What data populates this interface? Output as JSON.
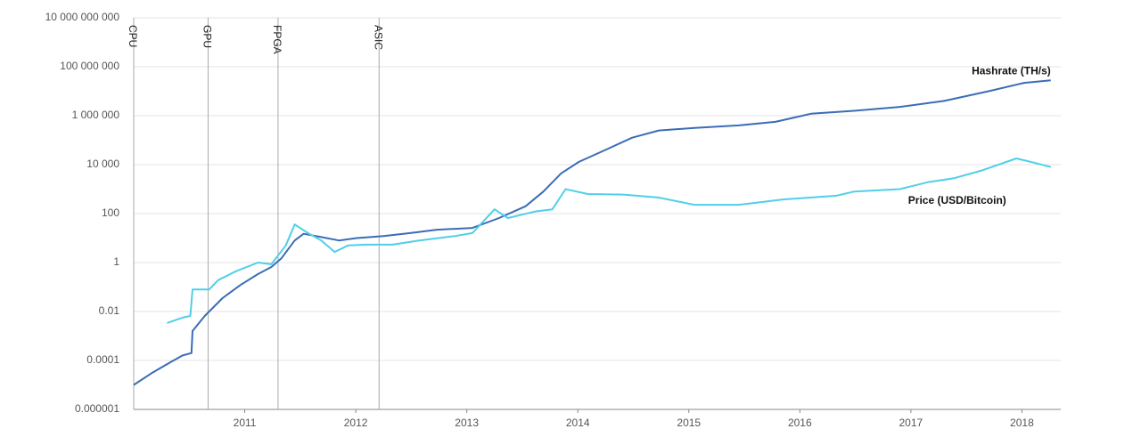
{
  "chart_data": {
    "type": "line",
    "log_scale": true,
    "grid": true,
    "xlim": [
      2010.0,
      2018.35
    ],
    "xticks": [
      2011,
      2012,
      2013,
      2014,
      2015,
      2016,
      2017,
      2018
    ],
    "ylim": [
      1e-06,
      10000000000
    ],
    "yticks": [
      {
        "value": 1e-06,
        "label": "0.000001"
      },
      {
        "value": 0.0001,
        "label": "0.0001"
      },
      {
        "value": 0.01,
        "label": "0.01"
      },
      1,
      100,
      {
        "value": 10000,
        "label": "10 000"
      },
      {
        "value": 1000000,
        "label": "1 000 000"
      },
      {
        "value": 100000000,
        "label": "100 000 000"
      },
      {
        "value": 10000000000,
        "label": "10 000 000 000"
      }
    ],
    "events": [
      {
        "label": "CPU",
        "x": 2010.0
      },
      {
        "label": "GPU",
        "x": 2010.67
      },
      {
        "label": "FPGA",
        "x": 2011.3
      },
      {
        "label": "ASIC",
        "x": 2012.21
      }
    ],
    "series": [
      {
        "name": "Hashrate (TH/s)",
        "color": "#3a6db5",
        "x": [
          2010.0,
          2010.16,
          2010.32,
          2010.44,
          2010.52,
          2010.53,
          2010.64,
          2010.8,
          2010.96,
          2011.12,
          2011.24,
          2011.33,
          2011.45,
          2011.53,
          2011.69,
          2011.85,
          2012.01,
          2012.25,
          2012.49,
          2012.73,
          2013.05,
          2013.29,
          2013.53,
          2013.69,
          2013.85,
          2014.01,
          2014.25,
          2014.49,
          2014.73,
          2015.05,
          2015.45,
          2015.78,
          2016.1,
          2016.5,
          2016.9,
          2017.3,
          2017.7,
          2018.02,
          2018.26
        ],
        "values": [
          1e-05,
          3e-05,
          8e-05,
          0.00016,
          0.0002,
          0.0016,
          0.0066,
          0.035,
          0.12,
          0.34,
          0.66,
          1.5,
          8,
          15,
          11,
          8,
          10,
          12,
          16,
          22,
          26,
          66,
          200,
          800,
          4400,
          13000,
          40000,
          126000,
          250000,
          316000,
          400000,
          560000,
          1200000,
          1600000,
          2300000,
          4000000,
          10000000,
          22000000,
          28000000
        ]
      },
      {
        "name": "Price (USD/Bitcoin)",
        "color": "#4fcfe8",
        "x": [
          2010.3,
          2010.44,
          2010.51,
          2010.53,
          2010.68,
          2010.76,
          2010.92,
          2011.12,
          2011.24,
          2011.37,
          2011.45,
          2011.57,
          2011.69,
          2011.81,
          2011.93,
          2012.09,
          2012.33,
          2012.57,
          2012.89,
          2013.05,
          2013.25,
          2013.37,
          2013.61,
          2013.77,
          2013.89,
          2014.09,
          2014.41,
          2014.73,
          2015.05,
          2015.45,
          2015.85,
          2016.33,
          2016.49,
          2016.9,
          2017.15,
          2017.39,
          2017.63,
          2017.95,
          2018.11,
          2018.26
        ],
        "values": [
          0.0034,
          0.0056,
          0.0066,
          0.08,
          0.08,
          0.19,
          0.44,
          1,
          0.85,
          5,
          36,
          16,
          8,
          2.7,
          5,
          5.4,
          5.4,
          8,
          12,
          16,
          150,
          66,
          120,
          150,
          1000,
          630,
          600,
          450,
          230,
          230,
          380,
          540,
          800,
          1000,
          1900,
          2800,
          5600,
          18000,
          12000,
          8000
        ]
      }
    ]
  }
}
